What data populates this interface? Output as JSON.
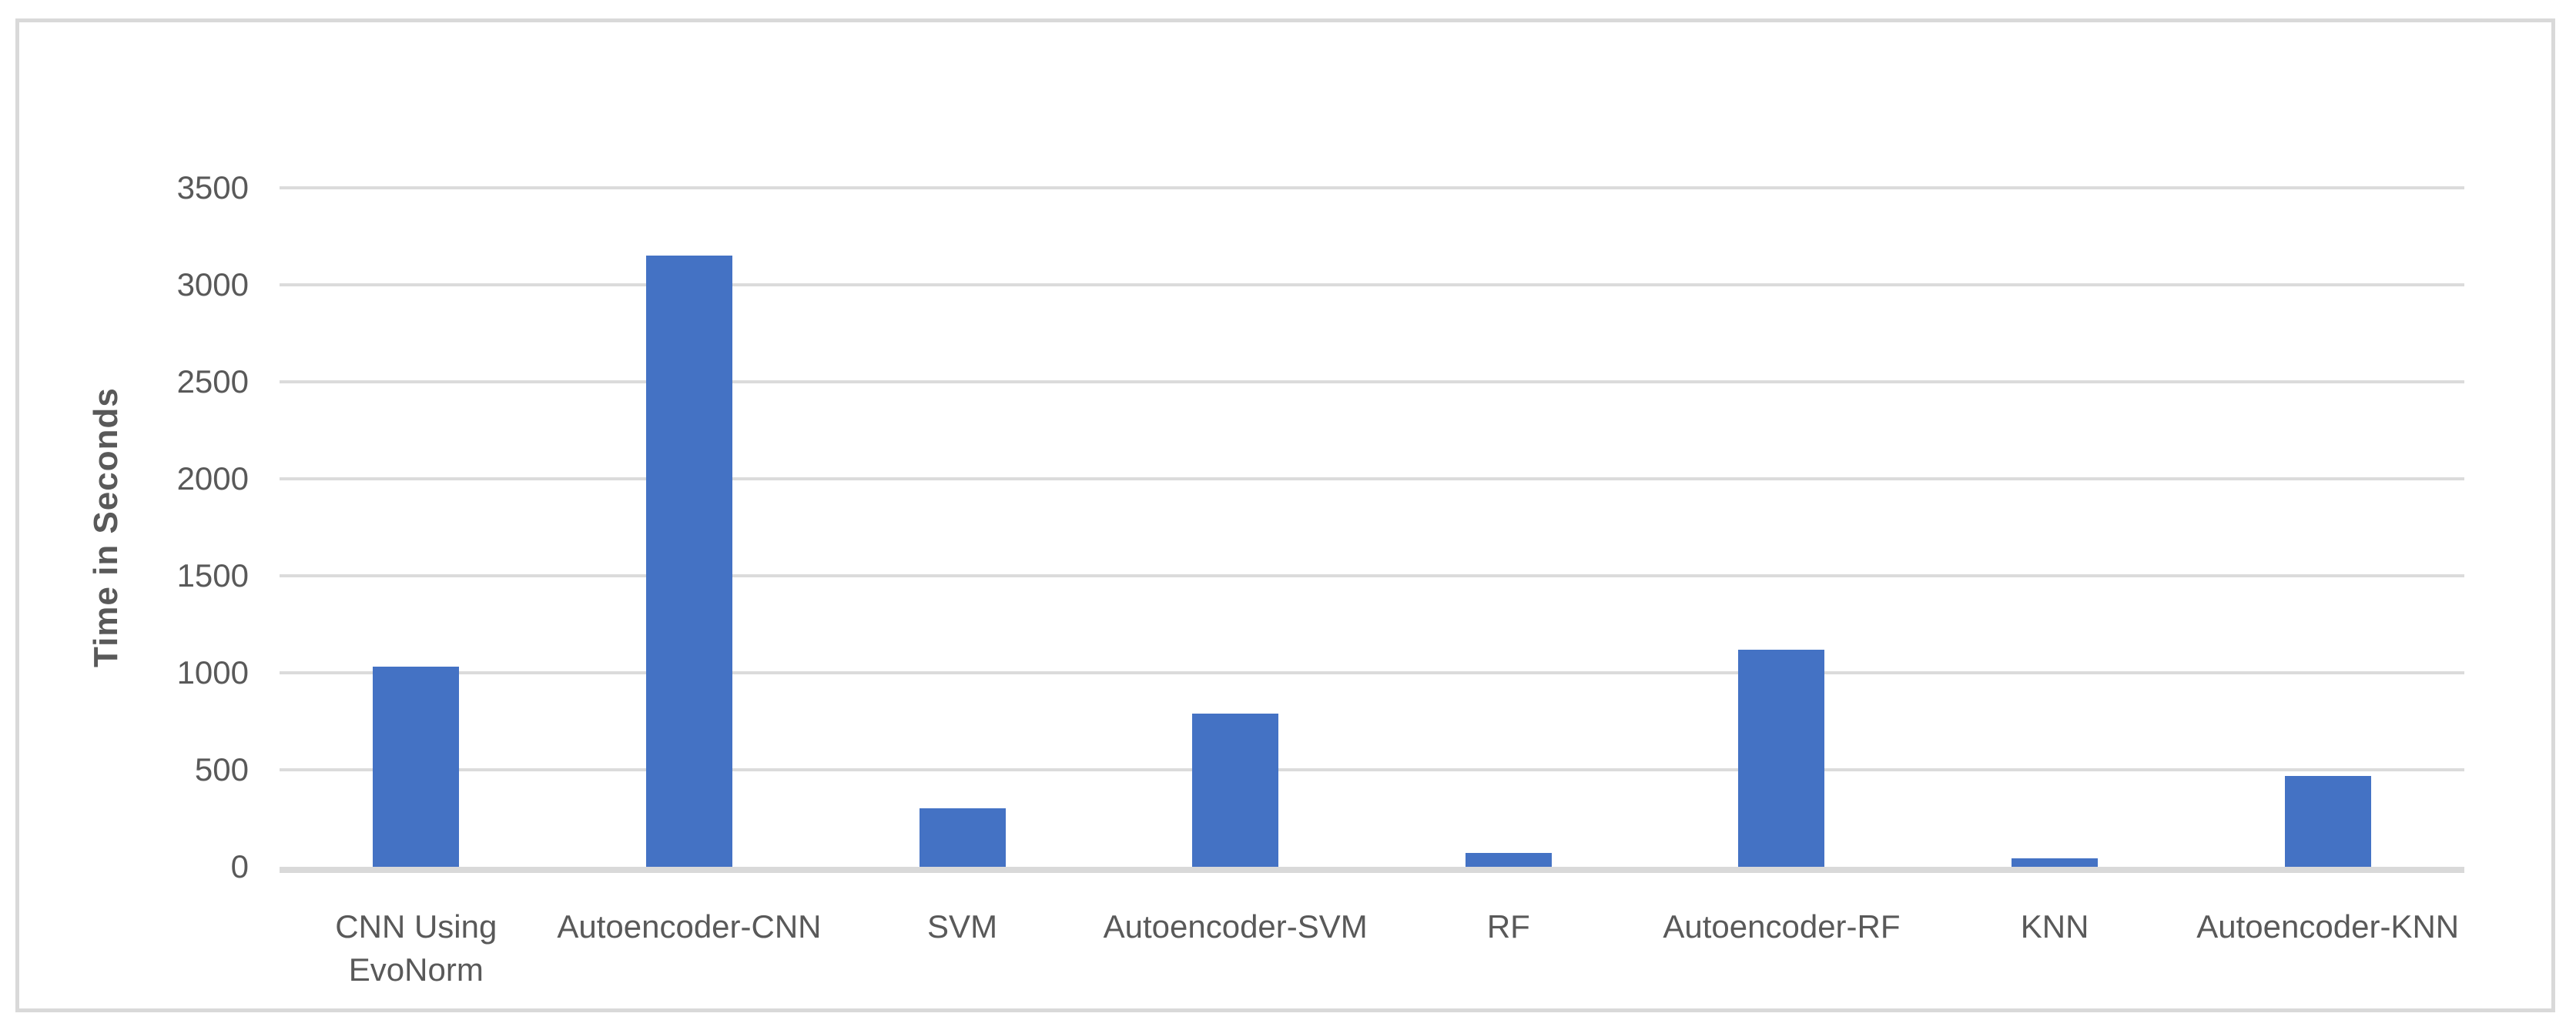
{
  "chart_data": {
    "type": "bar",
    "title": "",
    "xlabel": "",
    "ylabel": "Time in Seconds",
    "categories": [
      "CNN Using\nEvoNorm",
      "Autoencoder-CNN",
      "SVM",
      "Autoencoder-SVM",
      "RF",
      "Autoencoder-RF",
      "KNN",
      "Autoencoder-KNN"
    ],
    "values": [
      1030,
      3150,
      300,
      790,
      70,
      1120,
      45,
      470
    ],
    "ylim": [
      0,
      3500
    ],
    "yticks": [
      0,
      500,
      1000,
      1500,
      2000,
      2500,
      3000,
      3500
    ],
    "grid": true,
    "legend": "none",
    "bar_color": "#4472c4",
    "gridline_color": "#dbdbdb",
    "axis_line_color": "#d9d9d9",
    "axis_text_color": "#595959",
    "frame_border_color": "#d9d9d9"
  }
}
